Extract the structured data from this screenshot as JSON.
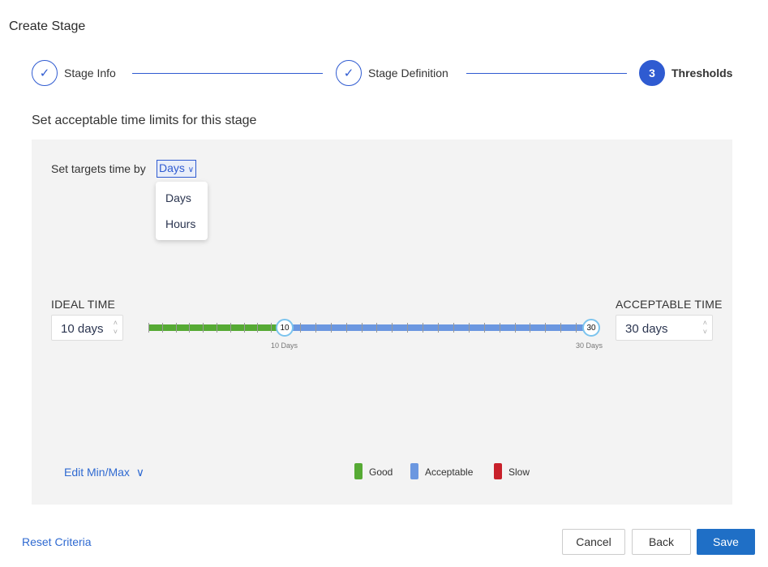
{
  "title": "Create Stage",
  "steps": [
    {
      "label": "Stage Info",
      "state": "complete",
      "icon": "check-icon"
    },
    {
      "label": "Stage Definition",
      "state": "complete",
      "icon": "check-icon"
    },
    {
      "number": "3",
      "label": "Thresholds",
      "state": "active"
    }
  ],
  "subtitle": "Set acceptable time limits for this stage",
  "unit_selector": {
    "label": "Set targets time by",
    "value": "Days",
    "options": [
      "Days",
      "Hours"
    ]
  },
  "ideal": {
    "label": "IDEAL TIME",
    "value": "10 days"
  },
  "acceptable": {
    "label": "ACCEPTABLE TIME",
    "value": "30 days"
  },
  "slider": {
    "min": 0,
    "max": 30,
    "ideal": 10,
    "acceptable": 30,
    "ideal_label": "10 Days",
    "acceptable_label": "30 Days",
    "ideal_handle": "10",
    "acceptable_handle": "30"
  },
  "edit_minmax": "Edit Min/Max",
  "legend": [
    {
      "label": "Good",
      "color": "#56aa34"
    },
    {
      "label": "Acceptable",
      "color": "#6b97e0"
    },
    {
      "label": "Slow",
      "color": "#c8202a"
    }
  ],
  "footer": {
    "reset": "Reset Criteria",
    "cancel": "Cancel",
    "back": "Back",
    "save": "Save"
  }
}
